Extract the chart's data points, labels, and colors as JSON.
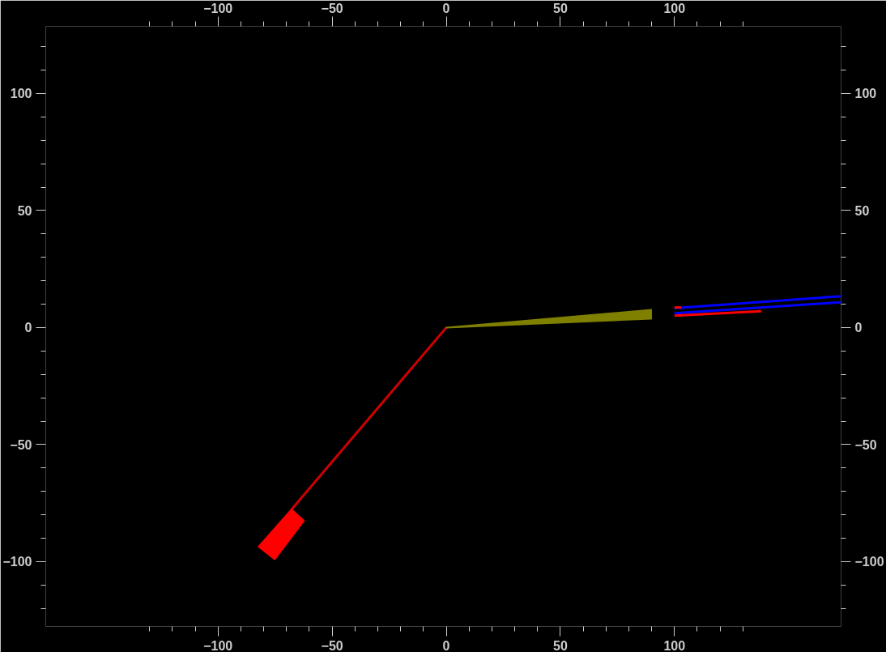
{
  "chart_data": {
    "type": "line",
    "series": [
      {
        "color": "#cc0000",
        "x": [
          0,
          -67.8
        ],
        "values": [
          0,
          -77.7
        ]
      },
      {
        "type": "area",
        "color": "#ff0000",
        "x": [
          -67.8,
          -62.4,
          -75.2,
          -82.2
        ],
        "values": [
          -77.7,
          -82.5,
          -99.0,
          -93.6
        ]
      },
      {
        "type": "area",
        "color": "#808000",
        "x": [
          0,
          89.8,
          89.8
        ],
        "values": [
          0,
          7.6,
          3.8
        ]
      },
      {
        "color": "#0000ff",
        "x": [
          100,
          173
        ],
        "values": [
          8.3,
          13.4
        ]
      },
      {
        "color": "#0000ff",
        "x": [
          100,
          173
        ],
        "values": [
          6.1,
          10.8
        ]
      },
      {
        "color": "#ff0000",
        "x": [
          100,
          103
        ],
        "values": [
          8.6,
          8.6
        ]
      },
      {
        "color": "#ff0000",
        "x": [
          100,
          138
        ],
        "values": [
          5.1,
          7.0
        ]
      }
    ],
    "xlim": [
      -175.5,
      173
    ],
    "ylim": [
      -127.7,
      128.7
    ],
    "xticks": [
      {
        "value": -130,
        "label": null
      },
      {
        "value": -120,
        "label": null
      },
      {
        "value": -110,
        "label": null
      },
      -100,
      {
        "value": -90,
        "label": null
      },
      {
        "value": -80,
        "label": null
      },
      {
        "value": -70,
        "label": null
      },
      {
        "value": -60,
        "label": null
      },
      -50,
      {
        "value": -40,
        "label": null
      },
      {
        "value": -30,
        "label": null
      },
      {
        "value": -20,
        "label": null
      },
      {
        "value": -10,
        "label": null
      },
      0,
      {
        "value": 10,
        "label": null
      },
      {
        "value": 20,
        "label": null
      },
      {
        "value": 30,
        "label": null
      },
      {
        "value": 40,
        "label": null
      },
      50,
      {
        "value": 60,
        "label": null
      },
      {
        "value": 70,
        "label": null
      },
      {
        "value": 80,
        "label": null
      },
      {
        "value": 90,
        "label": null
      },
      100,
      {
        "value": 110,
        "label": null
      },
      {
        "value": 120,
        "label": null
      },
      {
        "value": 130,
        "label": null
      }
    ],
    "x2lim": [
      -175.5,
      173
    ],
    "x2ticks": [
      {
        "value": -130,
        "label": null
      },
      {
        "value": -120,
        "label": null
      },
      {
        "value": -110,
        "label": null
      },
      -100,
      {
        "value": -90,
        "label": null
      },
      {
        "value": -80,
        "label": null
      },
      {
        "value": -70,
        "label": null
      },
      {
        "value": -60,
        "label": null
      },
      -50,
      {
        "value": -40,
        "label": null
      },
      {
        "value": -30,
        "label": null
      },
      {
        "value": -20,
        "label": null
      },
      {
        "value": -10,
        "label": null
      },
      0,
      {
        "value": 10,
        "label": null
      },
      {
        "value": 20,
        "label": null
      },
      {
        "value": 30,
        "label": null
      },
      {
        "value": 40,
        "label": null
      },
      50,
      {
        "value": 60,
        "label": null
      },
      {
        "value": 70,
        "label": null
      },
      {
        "value": 80,
        "label": null
      },
      {
        "value": 90,
        "label": null
      },
      100,
      {
        "value": 110,
        "label": null
      },
      {
        "value": 120,
        "label": null
      },
      {
        "value": 130,
        "label": null
      }
    ],
    "yticks": [
      {
        "value": -120,
        "label": null
      },
      {
        "value": -110,
        "label": null
      },
      -100,
      {
        "value": -90,
        "label": null
      },
      {
        "value": -80,
        "label": null
      },
      {
        "value": -70,
        "label": null
      },
      {
        "value": -60,
        "label": null
      },
      -50,
      {
        "value": -40,
        "label": null
      },
      {
        "value": -30,
        "label": null
      },
      {
        "value": -20,
        "label": null
      },
      {
        "value": -10,
        "label": null
      },
      0,
      {
        "value": 10,
        "label": null
      },
      {
        "value": 20,
        "label": null
      },
      {
        "value": 30,
        "label": null
      },
      {
        "value": 40,
        "label": null
      },
      50,
      {
        "value": 60,
        "label": null
      },
      {
        "value": 70,
        "label": null
      },
      {
        "value": 80,
        "label": null
      },
      {
        "value": 90,
        "label": null
      },
      100,
      {
        "value": 110,
        "label": null
      },
      {
        "value": 120,
        "label": null
      }
    ],
    "y2lim": [
      -127.7,
      128.7
    ],
    "y2ticks": [
      {
        "value": -120,
        "label": null
      },
      {
        "value": -110,
        "label": null
      },
      -100,
      {
        "value": -90,
        "label": null
      },
      {
        "value": -80,
        "label": null
      },
      {
        "value": -70,
        "label": null
      },
      {
        "value": -60,
        "label": null
      },
      -50,
      {
        "value": -40,
        "label": null
      },
      {
        "value": -30,
        "label": null
      },
      {
        "value": -20,
        "label": null
      },
      {
        "value": -10,
        "label": null
      },
      0,
      {
        "value": 10,
        "label": null
      },
      {
        "value": 20,
        "label": null
      },
      {
        "value": 30,
        "label": null
      },
      {
        "value": 40,
        "label": null
      },
      50,
      {
        "value": 60,
        "label": null
      },
      {
        "value": 70,
        "label": null
      },
      {
        "value": 80,
        "label": null
      },
      {
        "value": 90,
        "label": null
      },
      100,
      {
        "value": 110,
        "label": null
      },
      {
        "value": 120,
        "label": null
      }
    ],
    "grid": false
  }
}
